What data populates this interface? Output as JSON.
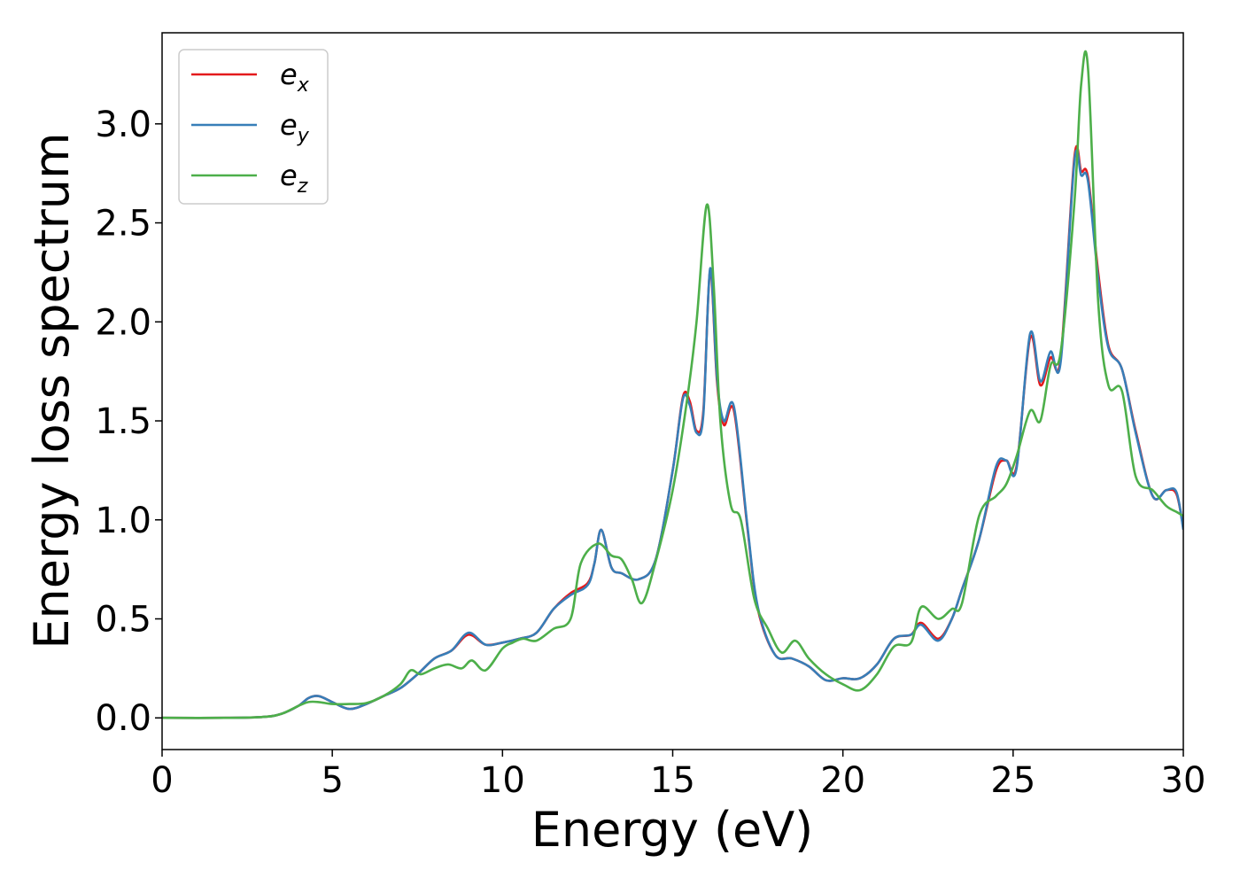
{
  "chart_data": {
    "type": "line",
    "title": "",
    "xlabel": "Energy (eV)",
    "ylabel": "Energy loss spectrum",
    "xlim": [
      0,
      30
    ],
    "ylim": [
      -0.16,
      3.46
    ],
    "xticks": [
      0,
      5,
      10,
      15,
      20,
      25,
      30
    ],
    "xtick_labels": [
      "0",
      "5",
      "10",
      "15",
      "20",
      "25",
      "30"
    ],
    "yticks": [
      0.0,
      0.5,
      1.0,
      1.5,
      2.0,
      2.5,
      3.0
    ],
    "ytick_labels": [
      "0.0",
      "0.5",
      "1.0",
      "1.5",
      "2.0",
      "2.5",
      "3.0"
    ],
    "grid": false,
    "legend_position": "upper-left",
    "series": [
      {
        "name": "e_x",
        "label_base": "e",
        "label_sub": "x",
        "color": "#e41a1c",
        "points": [
          [
            0,
            0
          ],
          [
            2,
            0
          ],
          [
            3,
            0.005
          ],
          [
            3.5,
            0.02
          ],
          [
            4,
            0.06
          ],
          [
            4.3,
            0.1
          ],
          [
            4.6,
            0.11
          ],
          [
            5,
            0.08
          ],
          [
            5.5,
            0.045
          ],
          [
            6,
            0.07
          ],
          [
            6.5,
            0.11
          ],
          [
            7,
            0.15
          ],
          [
            7.5,
            0.22
          ],
          [
            8,
            0.3
          ],
          [
            8.5,
            0.34
          ],
          [
            9,
            0.42
          ],
          [
            9.5,
            0.37
          ],
          [
            10,
            0.38
          ],
          [
            10.5,
            0.4
          ],
          [
            11,
            0.43
          ],
          [
            11.5,
            0.55
          ],
          [
            12,
            0.63
          ],
          [
            12.5,
            0.68
          ],
          [
            12.7,
            0.78
          ],
          [
            12.9,
            0.95
          ],
          [
            13.2,
            0.76
          ],
          [
            13.5,
            0.73
          ],
          [
            14,
            0.7
          ],
          [
            14.5,
            0.8
          ],
          [
            15,
            1.25
          ],
          [
            15.3,
            1.62
          ],
          [
            15.5,
            1.6
          ],
          [
            15.7,
            1.45
          ],
          [
            15.9,
            1.55
          ],
          [
            16.1,
            2.26
          ],
          [
            16.3,
            1.7
          ],
          [
            16.5,
            1.48
          ],
          [
            16.8,
            1.55
          ],
          [
            17.2,
            0.95
          ],
          [
            17.5,
            0.55
          ],
          [
            18,
            0.32
          ],
          [
            18.5,
            0.3
          ],
          [
            19,
            0.26
          ],
          [
            19.5,
            0.19
          ],
          [
            20,
            0.2
          ],
          [
            20.5,
            0.2
          ],
          [
            21,
            0.27
          ],
          [
            21.5,
            0.4
          ],
          [
            22,
            0.42
          ],
          [
            22.3,
            0.48
          ],
          [
            22.8,
            0.4
          ],
          [
            23.2,
            0.5
          ],
          [
            23.5,
            0.65
          ],
          [
            24,
            0.9
          ],
          [
            24.5,
            1.25
          ],
          [
            24.8,
            1.3
          ],
          [
            25.1,
            1.27
          ],
          [
            25.5,
            1.92
          ],
          [
            25.8,
            1.68
          ],
          [
            26.1,
            1.82
          ],
          [
            26.4,
            1.82
          ],
          [
            26.8,
            2.83
          ],
          [
            27,
            2.76
          ],
          [
            27.2,
            2.73
          ],
          [
            27.5,
            2.25
          ],
          [
            27.8,
            1.88
          ],
          [
            28.2,
            1.76
          ],
          [
            28.6,
            1.45
          ],
          [
            29.1,
            1.12
          ],
          [
            29.5,
            1.15
          ],
          [
            29.8,
            1.13
          ],
          [
            30,
            0.96
          ]
        ]
      },
      {
        "name": "e_y",
        "label_base": "e",
        "label_sub": "y",
        "color": "#377eb8",
        "points": [
          [
            0,
            0
          ],
          [
            2,
            0
          ],
          [
            3,
            0.005
          ],
          [
            3.5,
            0.02
          ],
          [
            4,
            0.06
          ],
          [
            4.3,
            0.1
          ],
          [
            4.6,
            0.11
          ],
          [
            5,
            0.08
          ],
          [
            5.5,
            0.045
          ],
          [
            6,
            0.07
          ],
          [
            6.5,
            0.11
          ],
          [
            7,
            0.15
          ],
          [
            7.5,
            0.22
          ],
          [
            8,
            0.3
          ],
          [
            8.5,
            0.34
          ],
          [
            9,
            0.43
          ],
          [
            9.5,
            0.37
          ],
          [
            10,
            0.38
          ],
          [
            10.5,
            0.4
          ],
          [
            11,
            0.43
          ],
          [
            11.5,
            0.55
          ],
          [
            12,
            0.62
          ],
          [
            12.5,
            0.67
          ],
          [
            12.7,
            0.78
          ],
          [
            12.9,
            0.95
          ],
          [
            13.2,
            0.76
          ],
          [
            13.5,
            0.73
          ],
          [
            14,
            0.7
          ],
          [
            14.5,
            0.8
          ],
          [
            15,
            1.25
          ],
          [
            15.3,
            1.61
          ],
          [
            15.5,
            1.58
          ],
          [
            15.7,
            1.44
          ],
          [
            15.9,
            1.53
          ],
          [
            16.1,
            2.27
          ],
          [
            16.3,
            1.72
          ],
          [
            16.5,
            1.5
          ],
          [
            16.8,
            1.57
          ],
          [
            17.2,
            0.96
          ],
          [
            17.5,
            0.56
          ],
          [
            18,
            0.32
          ],
          [
            18.5,
            0.3
          ],
          [
            19,
            0.26
          ],
          [
            19.5,
            0.19
          ],
          [
            20,
            0.2
          ],
          [
            20.5,
            0.2
          ],
          [
            21,
            0.27
          ],
          [
            21.5,
            0.4
          ],
          [
            22,
            0.42
          ],
          [
            22.3,
            0.47
          ],
          [
            22.8,
            0.39
          ],
          [
            23.2,
            0.5
          ],
          [
            23.5,
            0.65
          ],
          [
            24,
            0.9
          ],
          [
            24.5,
            1.27
          ],
          [
            24.8,
            1.3
          ],
          [
            25.1,
            1.26
          ],
          [
            25.5,
            1.94
          ],
          [
            25.8,
            1.7
          ],
          [
            26.1,
            1.85
          ],
          [
            26.4,
            1.8
          ],
          [
            26.8,
            2.81
          ],
          [
            27,
            2.74
          ],
          [
            27.2,
            2.71
          ],
          [
            27.5,
            2.22
          ],
          [
            27.8,
            1.87
          ],
          [
            28.2,
            1.76
          ],
          [
            28.6,
            1.44
          ],
          [
            29.1,
            1.12
          ],
          [
            29.5,
            1.15
          ],
          [
            29.8,
            1.14
          ],
          [
            30,
            0.95
          ]
        ]
      },
      {
        "name": "e_z",
        "label_base": "e",
        "label_sub": "z",
        "color": "#4daf4a",
        "points": [
          [
            0,
            0
          ],
          [
            2,
            0
          ],
          [
            3,
            0.005
          ],
          [
            3.5,
            0.02
          ],
          [
            4,
            0.06
          ],
          [
            4.3,
            0.08
          ],
          [
            4.6,
            0.08
          ],
          [
            5,
            0.07
          ],
          [
            5.5,
            0.07
          ],
          [
            6,
            0.075
          ],
          [
            6.5,
            0.11
          ],
          [
            7,
            0.17
          ],
          [
            7.3,
            0.24
          ],
          [
            7.6,
            0.22
          ],
          [
            8,
            0.25
          ],
          [
            8.4,
            0.27
          ],
          [
            8.8,
            0.25
          ],
          [
            9.1,
            0.29
          ],
          [
            9.5,
            0.24
          ],
          [
            10,
            0.35
          ],
          [
            10.3,
            0.38
          ],
          [
            10.6,
            0.4
          ],
          [
            11,
            0.39
          ],
          [
            11.5,
            0.45
          ],
          [
            12,
            0.5
          ],
          [
            12.3,
            0.78
          ],
          [
            12.8,
            0.88
          ],
          [
            13.2,
            0.82
          ],
          [
            13.5,
            0.8
          ],
          [
            13.8,
            0.7
          ],
          [
            14.1,
            0.58
          ],
          [
            14.5,
            0.79
          ],
          [
            15,
            1.15
          ],
          [
            15.4,
            1.58
          ],
          [
            15.7,
            2.0
          ],
          [
            16,
            2.59
          ],
          [
            16.2,
            2.2
          ],
          [
            16.4,
            1.5
          ],
          [
            16.7,
            1.08
          ],
          [
            17,
            1.0
          ],
          [
            17.4,
            0.6
          ],
          [
            17.8,
            0.45
          ],
          [
            18.2,
            0.33
          ],
          [
            18.6,
            0.39
          ],
          [
            19,
            0.3
          ],
          [
            19.5,
            0.22
          ],
          [
            20,
            0.17
          ],
          [
            20.5,
            0.14
          ],
          [
            21,
            0.22
          ],
          [
            21.5,
            0.36
          ],
          [
            22,
            0.38
          ],
          [
            22.3,
            0.56
          ],
          [
            22.8,
            0.5
          ],
          [
            23.2,
            0.55
          ],
          [
            23.5,
            0.58
          ],
          [
            24,
            1.02
          ],
          [
            24.5,
            1.12
          ],
          [
            24.8,
            1.18
          ],
          [
            25.1,
            1.32
          ],
          [
            25.5,
            1.55
          ],
          [
            25.8,
            1.5
          ],
          [
            26.1,
            1.78
          ],
          [
            26.4,
            1.85
          ],
          [
            26.8,
            2.6
          ],
          [
            27,
            3.2
          ],
          [
            27.2,
            3.28
          ],
          [
            27.5,
            2.1
          ],
          [
            27.8,
            1.68
          ],
          [
            28.2,
            1.65
          ],
          [
            28.6,
            1.22
          ],
          [
            29.1,
            1.15
          ],
          [
            29.5,
            1.07
          ],
          [
            29.8,
            1.04
          ],
          [
            30,
            1.02
          ]
        ]
      }
    ]
  }
}
